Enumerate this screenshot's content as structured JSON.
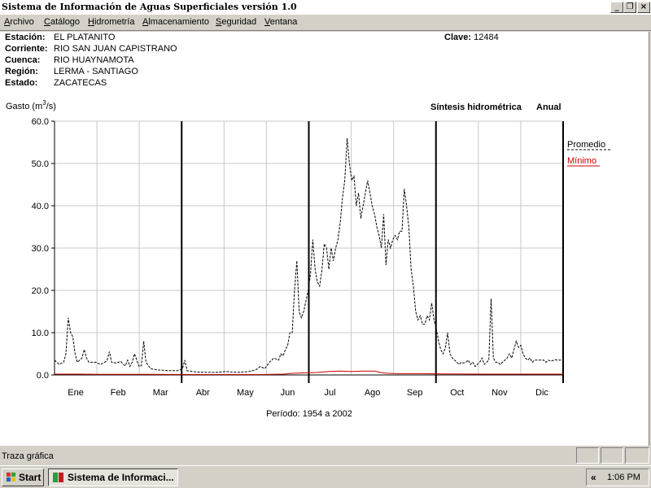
{
  "window": {
    "title": "Sistema de Información de Aguas Superficiales  versión 1.0",
    "minimize_glyph": "_",
    "restore_glyph": "❐",
    "close_glyph": "×"
  },
  "menu": [
    {
      "label": "Archivo",
      "u": "A",
      "rest": "rchivo"
    },
    {
      "label": "Catálogo",
      "u": "C",
      "rest": "atálogo"
    },
    {
      "label": "Hidrometría",
      "u": "H",
      "rest": "idrometría"
    },
    {
      "label": "Almacenamiento",
      "u": "A",
      "rest": "lmacenamiento"
    },
    {
      "label": "Seguridad",
      "u": "S",
      "rest": "eguridad"
    },
    {
      "label": "Ventana",
      "u": "V",
      "rest": "entana"
    }
  ],
  "station": {
    "rows": [
      {
        "label": "Estación:",
        "value": "EL PLATANITO"
      },
      {
        "label": "Corriente:",
        "value": "RIO SAN JUAN CAPISTRANO"
      },
      {
        "label": "Cuenca:",
        "value": "RIO HUAYNAMOTA"
      },
      {
        "label": "Región:",
        "value": "LERMA - SANTIAGO"
      },
      {
        "label": "Estado:",
        "value": "ZACATECAS"
      }
    ],
    "clave_label": "Clave:",
    "clave_value": "12484"
  },
  "chart_data": {
    "type": "line",
    "ylabel": "Gasto (m³/s)",
    "ylabel_main": "Gasto (m",
    "ylabel_sup": "3",
    "ylabel_end": "/s)",
    "title_right": "Síntesis hidrométrica",
    "title_mode": "Anual",
    "period": "Período:  1954 a 2002",
    "ylim": [
      0,
      60
    ],
    "yticks": [
      "60.0",
      "50.0",
      "40.0",
      "30.0",
      "20.0",
      "10.0",
      "0.0"
    ],
    "categories": [
      "Ene",
      "Feb",
      "Mar",
      "Abr",
      "May",
      "Jun",
      "Jul",
      "Ago",
      "Sep",
      "Oct",
      "Nov",
      "Dic"
    ],
    "grid": true,
    "legend_position": "right",
    "series": [
      {
        "name": "Promedio",
        "color": "#000000",
        "style": "dashed",
        "points": [
          [
            0,
            3.5
          ],
          [
            4,
            2.5
          ],
          [
            8,
            3
          ],
          [
            10,
            5
          ],
          [
            12,
            13.5
          ],
          [
            14,
            10
          ],
          [
            16,
            9
          ],
          [
            18,
            5
          ],
          [
            20,
            3
          ],
          [
            24,
            4
          ],
          [
            26,
            6
          ],
          [
            28,
            4
          ],
          [
            30,
            3
          ],
          [
            36,
            3
          ],
          [
            40,
            2.5
          ],
          [
            44,
            3
          ],
          [
            46,
            3.5
          ],
          [
            48,
            5.5
          ],
          [
            50,
            3
          ],
          [
            54,
            2.8
          ],
          [
            58,
            3.2
          ],
          [
            60,
            2.5
          ],
          [
            62,
            2.2
          ],
          [
            64,
            3.5
          ],
          [
            66,
            2
          ],
          [
            68,
            3
          ],
          [
            70,
            5
          ],
          [
            72,
            3.5
          ],
          [
            74,
            2
          ],
          [
            76,
            2.2
          ],
          [
            78,
            8
          ],
          [
            80,
            3
          ],
          [
            84,
            1.5
          ],
          [
            90,
            1.2
          ],
          [
            100,
            1
          ],
          [
            108,
            1
          ],
          [
            112,
            1.5
          ],
          [
            114,
            3.5
          ],
          [
            116,
            1
          ],
          [
            124,
            0.7
          ],
          [
            140,
            0.6
          ],
          [
            150,
            0.8
          ],
          [
            160,
            0.6
          ],
          [
            170,
            0.8
          ],
          [
            176,
            1.2
          ],
          [
            180,
            2
          ],
          [
            184,
            1.5
          ],
          [
            188,
            3
          ],
          [
            192,
            4
          ],
          [
            196,
            3.5
          ],
          [
            198,
            5
          ],
          [
            200,
            4.5
          ],
          [
            202,
            6
          ],
          [
            204,
            7
          ],
          [
            206,
            10
          ],
          [
            208,
            10
          ],
          [
            210,
            20
          ],
          [
            212,
            27
          ],
          [
            214,
            15
          ],
          [
            216,
            13.5
          ],
          [
            218,
            15
          ],
          [
            222,
            20
          ],
          [
            224,
            24
          ],
          [
            226,
            32
          ],
          [
            228,
            25
          ],
          [
            230,
            22
          ],
          [
            232,
            21
          ],
          [
            234,
            25
          ],
          [
            236,
            31
          ],
          [
            238,
            30
          ],
          [
            240,
            25
          ],
          [
            242,
            30
          ],
          [
            244,
            27
          ],
          [
            246,
            30
          ],
          [
            248,
            32
          ],
          [
            250,
            36
          ],
          [
            252,
            42
          ],
          [
            254,
            46
          ],
          [
            256,
            56
          ],
          [
            258,
            50
          ],
          [
            260,
            46
          ],
          [
            262,
            47
          ],
          [
            264,
            40
          ],
          [
            266,
            43
          ],
          [
            268,
            37
          ],
          [
            270,
            40
          ],
          [
            272,
            43
          ],
          [
            274,
            46
          ],
          [
            276,
            43
          ],
          [
            278,
            40
          ],
          [
            280,
            38
          ],
          [
            282,
            35
          ],
          [
            284,
            33
          ],
          [
            286,
            30
          ],
          [
            288,
            38
          ],
          [
            290,
            26
          ],
          [
            292,
            32
          ],
          [
            294,
            30
          ],
          [
            296,
            32
          ],
          [
            298,
            33
          ],
          [
            300,
            32
          ],
          [
            302,
            34
          ],
          [
            304,
            34
          ],
          [
            306,
            44
          ],
          [
            308,
            40
          ],
          [
            310,
            35
          ],
          [
            312,
            25
          ],
          [
            314,
            21
          ],
          [
            316,
            15
          ],
          [
            318,
            13
          ],
          [
            320,
            14
          ],
          [
            322,
            12
          ],
          [
            324,
            12
          ],
          [
            326,
            14
          ],
          [
            328,
            13
          ],
          [
            330,
            17
          ],
          [
            332,
            13
          ],
          [
            334,
            11
          ],
          [
            336,
            8
          ],
          [
            338,
            6
          ],
          [
            340,
            5
          ],
          [
            342,
            6.5
          ],
          [
            344,
            10
          ],
          [
            346,
            5
          ],
          [
            348,
            4
          ],
          [
            350,
            3.5
          ],
          [
            352,
            3
          ],
          [
            354,
            2.5
          ],
          [
            356,
            3
          ],
          [
            358,
            2.8
          ],
          [
            360,
            3
          ],
          [
            362,
            3.5
          ],
          [
            364,
            2.5
          ],
          [
            366,
            3
          ],
          [
            368,
            2
          ],
          [
            370,
            2.5
          ],
          [
            372,
            3
          ],
          [
            374,
            4
          ],
          [
            376,
            2.5
          ],
          [
            378,
            3
          ],
          [
            380,
            3.5
          ],
          [
            382,
            18
          ],
          [
            384,
            4
          ],
          [
            386,
            3
          ],
          [
            388,
            3
          ],
          [
            390,
            2.5
          ],
          [
            392,
            3
          ],
          [
            394,
            3.5
          ],
          [
            396,
            4
          ],
          [
            398,
            5
          ],
          [
            400,
            4
          ],
          [
            402,
            6
          ],
          [
            404,
            8
          ],
          [
            406,
            6.5
          ],
          [
            408,
            7
          ],
          [
            410,
            5
          ],
          [
            412,
            4
          ],
          [
            414,
            3.5
          ],
          [
            416,
            4
          ],
          [
            418,
            3
          ],
          [
            420,
            3.5
          ],
          [
            422,
            3.5
          ],
          [
            424,
            3.5
          ],
          [
            426,
            3.5
          ],
          [
            428,
            3.5
          ],
          [
            430,
            3
          ],
          [
            432,
            3.5
          ],
          [
            434,
            3.3
          ],
          [
            436,
            3.4
          ],
          [
            438,
            3.6
          ],
          [
            440,
            3.5
          ],
          [
            442,
            3.5
          ],
          [
            444,
            3.5
          ],
          [
            445,
            3.5
          ]
        ]
      },
      {
        "name": "Mínimo",
        "color": "#cc0000",
        "style": "solid",
        "points": [
          [
            0,
            0.2
          ],
          [
            20,
            0.2
          ],
          [
            40,
            0.15
          ],
          [
            80,
            0.15
          ],
          [
            120,
            0.1
          ],
          [
            180,
            0.1
          ],
          [
            200,
            0.2
          ],
          [
            210,
            0.4
          ],
          [
            230,
            0.6
          ],
          [
            240,
            0.8
          ],
          [
            250,
            0.9
          ],
          [
            260,
            0.8
          ],
          [
            270,
            0.9
          ],
          [
            280,
            0.9
          ],
          [
            285,
            0.6
          ],
          [
            290,
            0.4
          ],
          [
            300,
            0.3
          ],
          [
            320,
            0.3
          ],
          [
            340,
            0.25
          ],
          [
            380,
            0.2
          ],
          [
            420,
            0.2
          ],
          [
            445,
            0.2
          ]
        ]
      }
    ]
  },
  "status": {
    "text": "Traza gráfica"
  },
  "taskbar": {
    "start_label": "Start",
    "task_label": "Sistema de Informaci...",
    "clock": "1:06 PM",
    "tray_arrow": "«"
  }
}
